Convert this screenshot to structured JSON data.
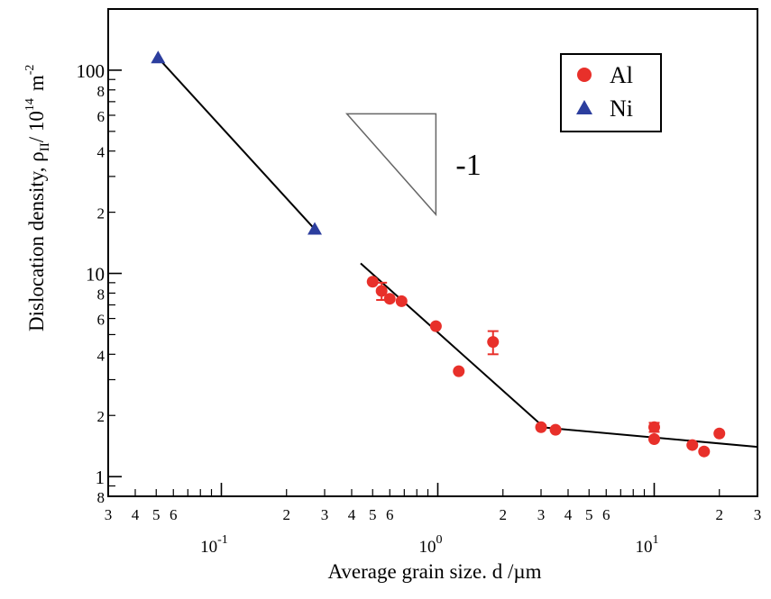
{
  "chart_data": {
    "type": "scatter",
    "title": "",
    "xlabel": "Average grain size. d /µm",
    "ylabel_main": "Dislocation density, ρ",
    "ylabel_sub": "II",
    "ylabel_tail": "/ 10",
    "ylabel_exp": "14",
    "ylabel_unit": "m",
    "ylabel_unit_exp": "-2",
    "x_scale": "log",
    "y_scale": "log",
    "xlim": [
      0.03,
      30
    ],
    "ylim": [
      0.8,
      200
    ],
    "grid": false,
    "legend_position": "top-right",
    "x_major_ticks": [
      {
        "value": 0.1,
        "base": "10",
        "exp": "-1"
      },
      {
        "value": 1,
        "base": "10",
        "exp": "0"
      },
      {
        "value": 10,
        "base": "10",
        "exp": "1"
      }
    ],
    "x_minor_ticks": [
      {
        "value": 0.03,
        "label": "3"
      },
      {
        "value": 0.04,
        "label": "4"
      },
      {
        "value": 0.05,
        "label": "5"
      },
      {
        "value": 0.06,
        "label": "6"
      },
      {
        "value": 0.07,
        "label": ""
      },
      {
        "value": 0.08,
        "label": ""
      },
      {
        "value": 0.09,
        "label": ""
      },
      {
        "value": 0.2,
        "label": "2"
      },
      {
        "value": 0.3,
        "label": "3"
      },
      {
        "value": 0.4,
        "label": "4"
      },
      {
        "value": 0.5,
        "label": "5"
      },
      {
        "value": 0.6,
        "label": "6"
      },
      {
        "value": 0.7,
        "label": ""
      },
      {
        "value": 0.8,
        "label": ""
      },
      {
        "value": 0.9,
        "label": ""
      },
      {
        "value": 2,
        "label": "2"
      },
      {
        "value": 3,
        "label": "3"
      },
      {
        "value": 4,
        "label": "4"
      },
      {
        "value": 5,
        "label": "5"
      },
      {
        "value": 6,
        "label": "6"
      },
      {
        "value": 7,
        "label": ""
      },
      {
        "value": 8,
        "label": ""
      },
      {
        "value": 9,
        "label": ""
      },
      {
        "value": 20,
        "label": "2"
      },
      {
        "value": 30,
        "label": "3"
      }
    ],
    "y_major_ticks": [
      {
        "value": 1,
        "label": "1"
      },
      {
        "value": 10,
        "label": "10"
      },
      {
        "value": 100,
        "label": "100"
      }
    ],
    "y_minor_ticks": [
      {
        "value": 0.8,
        "label": "8"
      },
      {
        "value": 0.9,
        "label": ""
      },
      {
        "value": 2,
        "label": "2"
      },
      {
        "value": 3,
        "label": ""
      },
      {
        "value": 4,
        "label": "4"
      },
      {
        "value": 5,
        "label": ""
      },
      {
        "value": 6,
        "label": "6"
      },
      {
        "value": 7,
        "label": ""
      },
      {
        "value": 8,
        "label": "8"
      },
      {
        "value": 9,
        "label": ""
      },
      {
        "value": 20,
        "label": "2"
      },
      {
        "value": 30,
        "label": ""
      },
      {
        "value": 40,
        "label": "4"
      },
      {
        "value": 50,
        "label": ""
      },
      {
        "value": 60,
        "label": "6"
      },
      {
        "value": 70,
        "label": ""
      },
      {
        "value": 80,
        "label": "8"
      },
      {
        "value": 90,
        "label": ""
      }
    ],
    "series": [
      {
        "name": "Al",
        "marker": "circle",
        "color": "#e8302a",
        "points": [
          {
            "x": 0.5,
            "y": 9.1
          },
          {
            "x": 0.55,
            "y": 8.2,
            "err": 0.8
          },
          {
            "x": 0.6,
            "y": 7.5
          },
          {
            "x": 0.68,
            "y": 7.3
          },
          {
            "x": 0.98,
            "y": 5.5
          },
          {
            "x": 1.25,
            "y": 3.3
          },
          {
            "x": 1.8,
            "y": 4.6,
            "err": 0.6
          },
          {
            "x": 3.0,
            "y": 1.75
          },
          {
            "x": 3.5,
            "y": 1.7
          },
          {
            "x": 10,
            "y": 1.75,
            "err": 0.09
          },
          {
            "x": 10,
            "y": 1.53
          },
          {
            "x": 15,
            "y": 1.43
          },
          {
            "x": 17,
            "y": 1.33
          },
          {
            "x": 20,
            "y": 1.63
          }
        ]
      },
      {
        "name": "Ni",
        "marker": "triangle",
        "color": "#2c3e9e",
        "points": [
          {
            "x": 0.051,
            "y": 115
          },
          {
            "x": 0.27,
            "y": 16.5
          }
        ]
      }
    ],
    "fit_lines": [
      {
        "x": [
          0.051,
          0.27
        ],
        "y": [
          115,
          16.5
        ]
      },
      {
        "x": [
          0.44,
          3.0
        ],
        "y": [
          11.2,
          1.8
        ]
      },
      {
        "x": [
          3.0,
          30
        ],
        "y": [
          1.75,
          1.4
        ]
      }
    ],
    "slope_triangle": {
      "x": [
        0.38,
        0.98
      ],
      "y": [
        19.5,
        61
      ],
      "label": "-1"
    }
  }
}
